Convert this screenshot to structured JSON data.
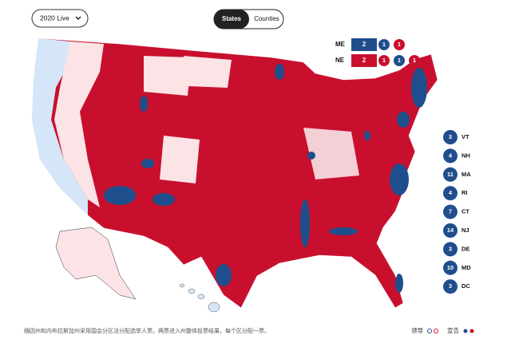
{
  "header": {
    "dropdown": "2020 Live",
    "toggle": [
      "States",
      "Counties"
    ]
  },
  "split_states": [
    {
      "label": "ME",
      "votes": [
        {
          "value": 2,
          "color": "#1f4e8c"
        },
        {
          "value": 1,
          "color": "#1f4e8c"
        },
        {
          "value": 1,
          "color": "#c8102e"
        }
      ]
    },
    {
      "label": "NE",
      "votes": [
        {
          "value": 2,
          "color": "#c8102e"
        },
        {
          "value": 1,
          "color": "#c8102e"
        },
        {
          "value": 1,
          "color": "#1f4e8c"
        },
        {
          "value": 1,
          "color": "#c8102e"
        }
      ]
    }
  ],
  "small_states": [
    {
      "label": "VT",
      "votes": 3,
      "color": "#1f4e8c"
    },
    {
      "label": "NH",
      "votes": 4,
      "color": "#1f4e8c"
    },
    {
      "label": "MA",
      "votes": 11,
      "color": "#1f4e8c"
    },
    {
      "label": "RI",
      "votes": 4,
      "color": "#1f4e8c"
    },
    {
      "label": "CT",
      "votes": 7,
      "color": "#1f4e8c"
    },
    {
      "label": "NJ",
      "votes": 14,
      "color": "#1f4e8c"
    },
    {
      "label": "DE",
      "votes": 3,
      "color": "#1f4e8c"
    },
    {
      "label": "MD",
      "votes": 10,
      "color": "#1f4e8c"
    },
    {
      "label": "DC",
      "votes": 3,
      "color": "#1f4e8c"
    }
  ],
  "footnote": "缅因州和内布拉斯加州采用国会分区法分配选举人票。两票进入州整体投票结果，每个区分配一票。",
  "legend": [
    "领导",
    "宣告"
  ]
}
